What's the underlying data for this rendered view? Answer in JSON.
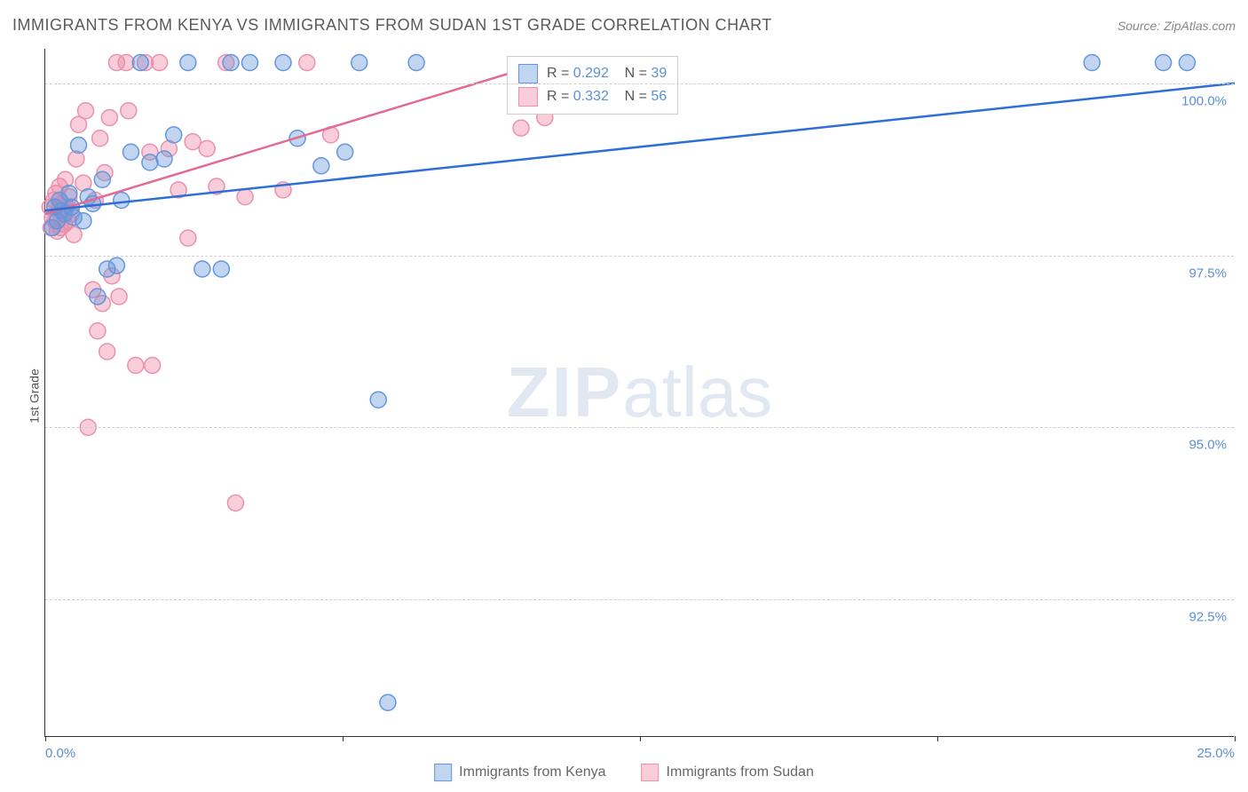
{
  "chart": {
    "type": "scatter",
    "title": "IMMIGRANTS FROM KENYA VS IMMIGRANTS FROM SUDAN 1ST GRADE CORRELATION CHART",
    "source": "Source: ZipAtlas.com",
    "y_axis_label": "1st Grade",
    "watermark_zip": "ZIP",
    "watermark_atlas": "atlas",
    "background_color": "#ffffff",
    "grid_color": "#d0d0d0",
    "axis_color": "#333333",
    "tick_label_color": "#5b8fd6",
    "xlim": [
      0,
      25
    ],
    "ylim": [
      90.5,
      100.5
    ],
    "y_ticks": [
      {
        "v": 92.5,
        "label": "92.5%"
      },
      {
        "v": 95.0,
        "label": "95.0%"
      },
      {
        "v": 97.5,
        "label": "97.5%"
      },
      {
        "v": 100.0,
        "label": "100.0%"
      }
    ],
    "x_ticks": [
      {
        "v": 0,
        "label": "0.0%",
        "pos": "first"
      },
      {
        "v": 6.25,
        "label": ""
      },
      {
        "v": 12.5,
        "label": ""
      },
      {
        "v": 18.75,
        "label": ""
      },
      {
        "v": 25,
        "label": "25.0%",
        "pos": "last"
      }
    ],
    "series": [
      {
        "name": "Immigrants from Kenya",
        "fill_color": "rgba(100, 150, 220, 0.4)",
        "stroke_color": "#6496dc",
        "line_color": "#2d6fd6",
        "r_value": "0.292",
        "n_value": "39",
        "marker_radius": 9,
        "trend": {
          "x1": 0,
          "y1": 98.15,
          "x2": 25,
          "y2": 100.0
        },
        "points": [
          [
            0.15,
            97.9
          ],
          [
            0.2,
            98.2
          ],
          [
            0.25,
            98.0
          ],
          [
            0.3,
            98.3
          ],
          [
            0.35,
            98.15
          ],
          [
            0.4,
            98.1
          ],
          [
            0.5,
            98.4
          ],
          [
            0.55,
            98.2
          ],
          [
            0.6,
            98.05
          ],
          [
            0.7,
            99.1
          ],
          [
            0.8,
            98.0
          ],
          [
            0.9,
            98.35
          ],
          [
            1.0,
            98.25
          ],
          [
            1.1,
            96.9
          ],
          [
            1.2,
            98.6
          ],
          [
            1.3,
            97.3
          ],
          [
            1.5,
            97.35
          ],
          [
            1.6,
            98.3
          ],
          [
            1.8,
            99.0
          ],
          [
            2.0,
            100.3
          ],
          [
            2.2,
            98.85
          ],
          [
            2.5,
            98.9
          ],
          [
            2.7,
            99.25
          ],
          [
            3.0,
            100.3
          ],
          [
            3.3,
            97.3
          ],
          [
            3.7,
            97.3
          ],
          [
            3.9,
            100.3
          ],
          [
            4.3,
            100.3
          ],
          [
            5.0,
            100.3
          ],
          [
            5.3,
            99.2
          ],
          [
            5.8,
            98.8
          ],
          [
            6.3,
            99.0
          ],
          [
            6.6,
            100.3
          ],
          [
            7.0,
            95.4
          ],
          [
            7.2,
            91.0
          ],
          [
            7.8,
            100.3
          ],
          [
            22.0,
            100.3
          ],
          [
            23.5,
            100.3
          ],
          [
            24.0,
            100.3
          ]
        ]
      },
      {
        "name": "Immigrants from Sudan",
        "fill_color": "rgba(240, 130, 160, 0.4)",
        "stroke_color": "#e892ac",
        "line_color": "#e36a93",
        "r_value": "0.332",
        "n_value": "56",
        "marker_radius": 9,
        "trend": {
          "x1": 0,
          "y1": 98.1,
          "x2": 10.5,
          "y2": 100.3
        },
        "points": [
          [
            0.1,
            98.2
          ],
          [
            0.12,
            97.9
          ],
          [
            0.15,
            98.05
          ],
          [
            0.18,
            98.3
          ],
          [
            0.2,
            98.0
          ],
          [
            0.22,
            98.4
          ],
          [
            0.25,
            97.85
          ],
          [
            0.28,
            98.15
          ],
          [
            0.3,
            98.5
          ],
          [
            0.32,
            97.9
          ],
          [
            0.35,
            98.25
          ],
          [
            0.38,
            98.1
          ],
          [
            0.4,
            97.95
          ],
          [
            0.42,
            98.6
          ],
          [
            0.45,
            98.2
          ],
          [
            0.48,
            98.0
          ],
          [
            0.5,
            98.35
          ],
          [
            0.55,
            98.1
          ],
          [
            0.6,
            97.8
          ],
          [
            0.65,
            98.9
          ],
          [
            0.7,
            99.4
          ],
          [
            0.8,
            98.55
          ],
          [
            0.85,
            99.6
          ],
          [
            0.9,
            95.0
          ],
          [
            1.0,
            97.0
          ],
          [
            1.05,
            98.3
          ],
          [
            1.1,
            96.4
          ],
          [
            1.15,
            99.2
          ],
          [
            1.2,
            96.8
          ],
          [
            1.25,
            98.7
          ],
          [
            1.3,
            96.1
          ],
          [
            1.35,
            99.5
          ],
          [
            1.4,
            97.2
          ],
          [
            1.5,
            100.3
          ],
          [
            1.55,
            96.9
          ],
          [
            1.7,
            100.3
          ],
          [
            1.75,
            99.6
          ],
          [
            1.9,
            95.9
          ],
          [
            2.1,
            100.3
          ],
          [
            2.2,
            99.0
          ],
          [
            2.25,
            95.9
          ],
          [
            2.4,
            100.3
          ],
          [
            2.6,
            99.05
          ],
          [
            2.8,
            98.45
          ],
          [
            3.0,
            97.75
          ],
          [
            3.1,
            99.15
          ],
          [
            3.4,
            99.05
          ],
          [
            3.6,
            98.5
          ],
          [
            3.8,
            100.3
          ],
          [
            4.0,
            93.9
          ],
          [
            4.2,
            98.35
          ],
          [
            5.0,
            98.45
          ],
          [
            5.5,
            100.3
          ],
          [
            6.0,
            99.25
          ],
          [
            10.0,
            99.35
          ],
          [
            10.5,
            99.5
          ]
        ]
      }
    ],
    "correlation_legend": {
      "r_label": "R = ",
      "n_label": "N = "
    },
    "bottom_legend_labels": [
      "Immigrants from Kenya",
      "Immigrants from Sudan"
    ]
  }
}
